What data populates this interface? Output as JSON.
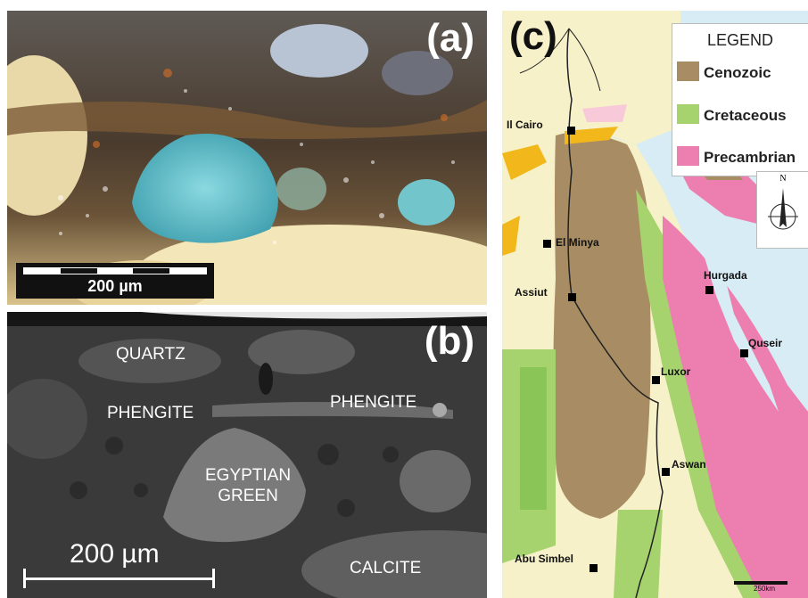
{
  "panels": {
    "a": {
      "label": "(a)",
      "scale_text": "200 µm"
    },
    "b": {
      "label": "(b)",
      "scale_text": "200 µm",
      "minerals": {
        "quartz": "QUARTZ",
        "phengite_left": "PHENGITE",
        "phengite_right": "PHENGITE",
        "egyptian_green": "EGYPTIAN\nGREEN",
        "calcite": "CALCITE"
      }
    },
    "c": {
      "label": "(c)",
      "legend": {
        "title": "LEGEND",
        "items": [
          {
            "label": "Cenozoic",
            "color": "#a88c63"
          },
          {
            "label": "Cretaceous",
            "color": "#a6d36e"
          },
          {
            "label": "Precambrian",
            "color": "#ec7fb0"
          }
        ]
      },
      "north_label": "N",
      "scale_label": "250km",
      "cities": {
        "cairo": "Il Cairo",
        "el_minya": "El Minya",
        "assiut": "Assiut",
        "hurgada": "Hurgada",
        "quseir": "Quseir",
        "luxor": "Luxor",
        "aswan": "Aswan",
        "abu_simbel": "Abu Simbel"
      }
    }
  }
}
